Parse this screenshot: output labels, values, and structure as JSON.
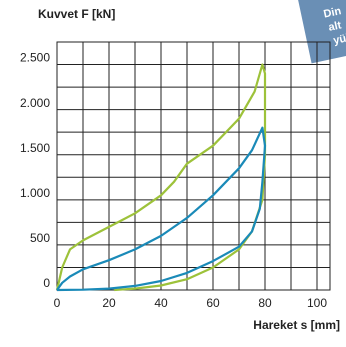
{
  "chart_data": {
    "type": "line",
    "y_label": "Kuvvet F [kN]",
    "x_label": "Hareket s [mm]",
    "annotation": [
      "Din",
      "alt",
      "yük"
    ],
    "xlim": [
      0,
      105
    ],
    "ylim": [
      0,
      2750
    ],
    "xticks": [
      0,
      20,
      40,
      60,
      80,
      100
    ],
    "yticks": [
      0,
      500,
      {
        "value": 1000,
        "label": "1.000"
      },
      {
        "value": 1500,
        "label": "1.500"
      },
      {
        "value": 2000,
        "label": "2.000"
      },
      {
        "value": 2500,
        "label": "2.500"
      }
    ],
    "grid": true,
    "series": [
      {
        "color": "#9dc23a",
        "x": [
          0,
          2,
          5,
          10,
          20,
          30,
          40,
          45,
          50,
          60,
          70,
          76,
          79,
          80,
          80,
          79,
          75,
          70,
          60,
          50,
          40,
          30,
          22
        ],
        "values": [
          0,
          250,
          450,
          550,
          700,
          850,
          1050,
          1200,
          1400,
          1600,
          1900,
          2200,
          2500,
          2400,
          1500,
          1000,
          650,
          450,
          250,
          120,
          50,
          15,
          0
        ]
      },
      {
        "color": "#1a8ab8",
        "x": [
          0,
          2,
          5,
          10,
          20,
          30,
          40,
          50,
          60,
          70,
          75,
          79,
          80,
          79,
          78,
          75,
          70,
          60,
          50,
          40,
          30,
          20,
          10,
          0
        ],
        "values": [
          0,
          80,
          150,
          230,
          330,
          450,
          600,
          800,
          1050,
          1350,
          1550,
          1800,
          1600,
          1200,
          900,
          650,
          480,
          320,
          190,
          100,
          45,
          15,
          3,
          0
        ]
      }
    ]
  }
}
